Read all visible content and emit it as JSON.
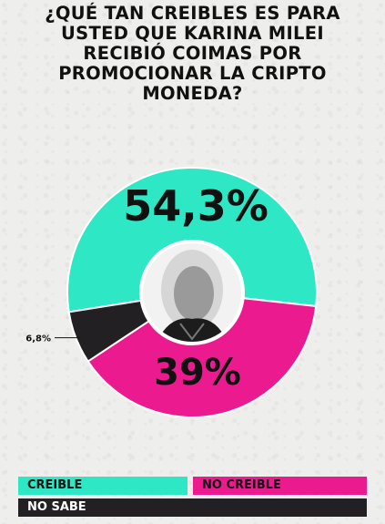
{
  "title": "¿QUÉ TAN CREIBLES ES PARA USTED QUE KARINA MILEI RECIBIÓ COIMAS POR PROMOCIONAR LA CRIPTO MONEDA?",
  "colors": {
    "creible": "#2ee8c5",
    "no_creible": "#ec1a8f",
    "no_sabe": "#222022"
  },
  "chart_data": {
    "type": "pie",
    "title": "¿QUÉ TAN CREIBLES ES PARA USTED QUE KARINA MILEI RECIBIÓ COIMAS POR PROMOCIONAR LA CRIPTO MONEDA?",
    "categories": [
      "CREIBLE",
      "NO CREIBLE",
      "NO SABE"
    ],
    "values": [
      54.3,
      39,
      6.8
    ],
    "labels": [
      "54,3%",
      "39%",
      "6,8%"
    ],
    "legend_position": "bottom"
  },
  "legend": {
    "creible": "CREIBLE",
    "no_creible": "NO CREIBLE",
    "no_sabe": "NO SABE"
  }
}
